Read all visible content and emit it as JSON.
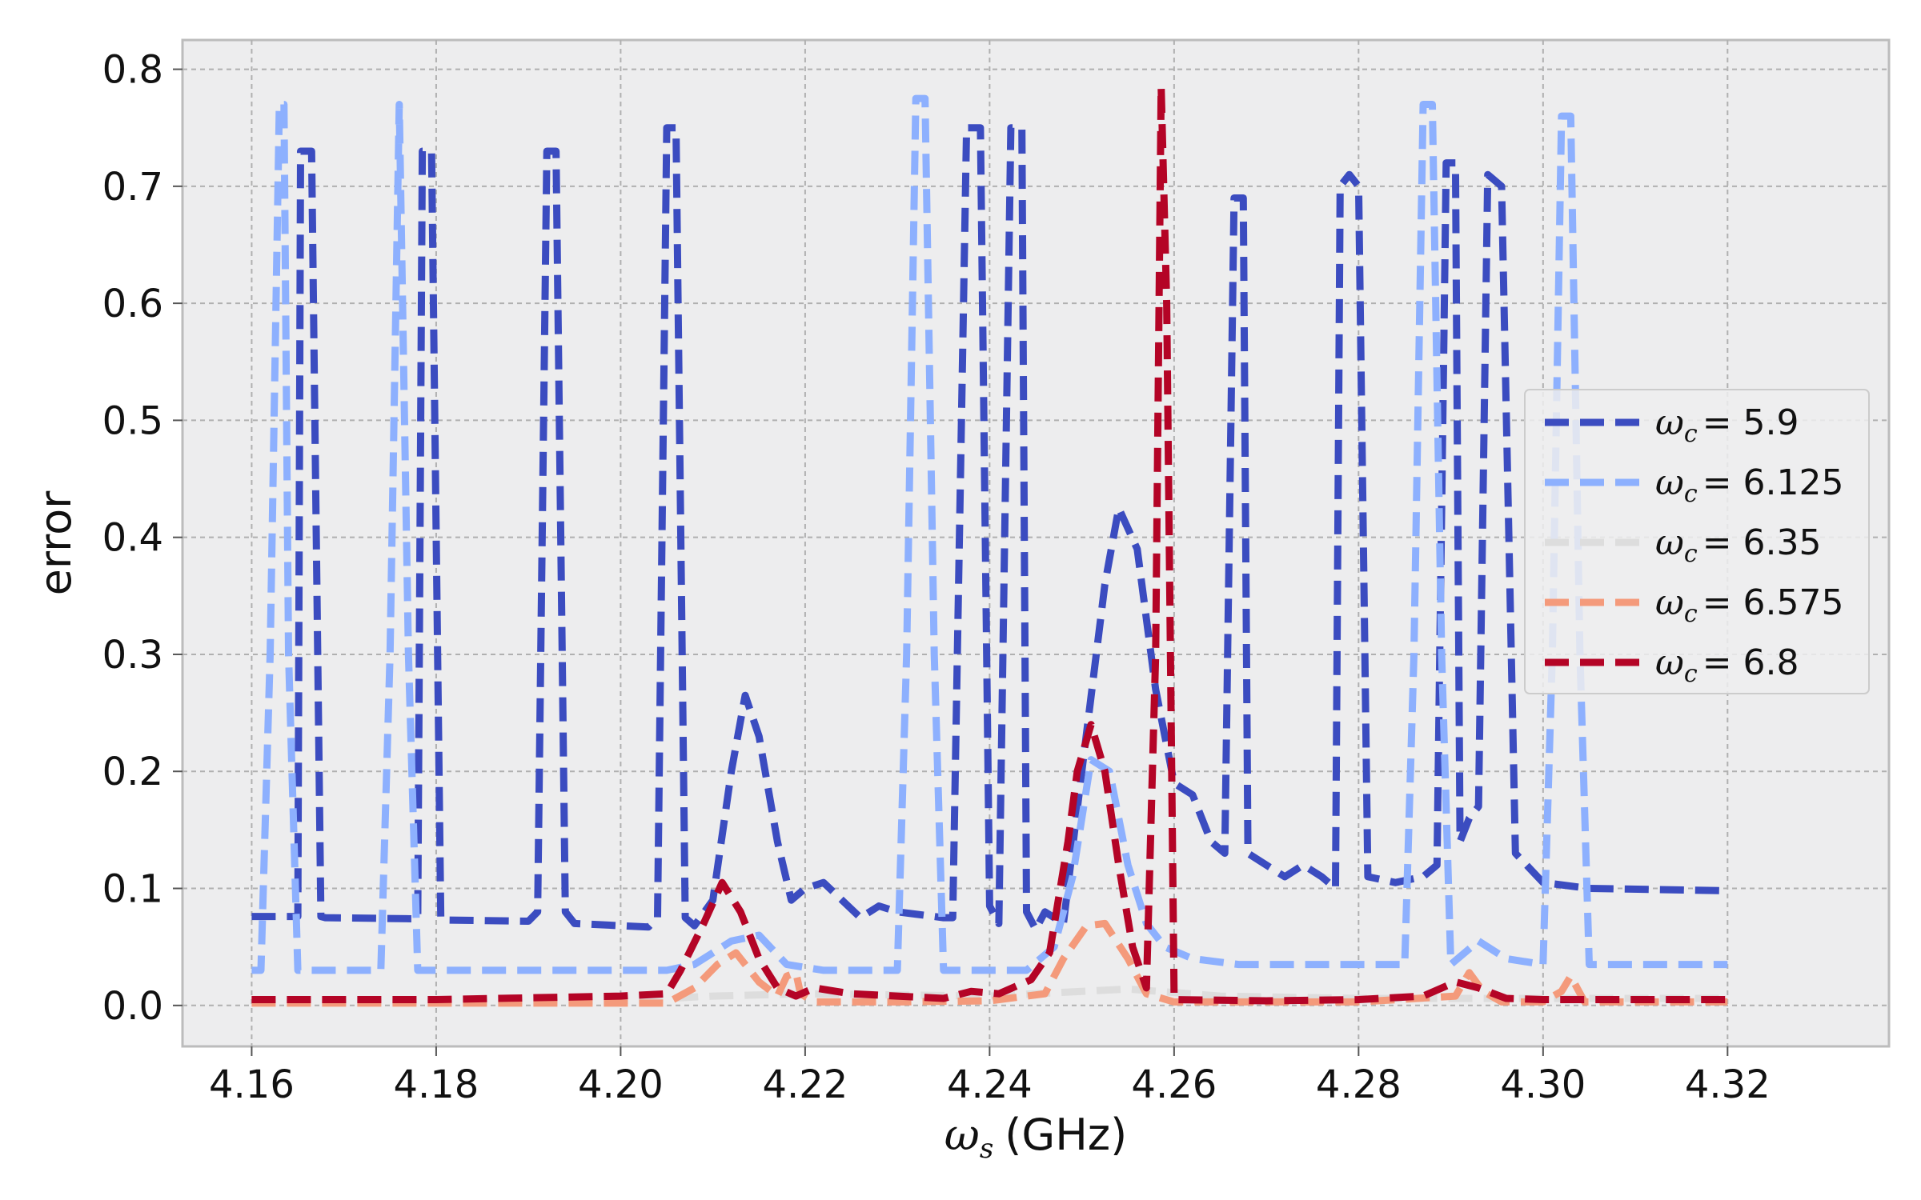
{
  "chart_data": {
    "type": "line",
    "xlabel": {
      "symbol": "ω",
      "subscript": "s",
      "unit": "(GHz)"
    },
    "ylabel": "error",
    "xlim": [
      4.1525,
      4.3375
    ],
    "ylim": [
      -0.035,
      0.825
    ],
    "xticks": [
      4.16,
      4.18,
      4.2,
      4.22,
      4.24,
      4.26,
      4.28,
      4.3,
      4.32
    ],
    "xtick_labels": [
      "4.16",
      "4.18",
      "4.20",
      "4.22",
      "4.24",
      "4.26",
      "4.28",
      "4.30",
      "4.32"
    ],
    "yticks": [
      0.0,
      0.1,
      0.2,
      0.3,
      0.4,
      0.5,
      0.6,
      0.7,
      0.8
    ],
    "ytick_labels": [
      "0.0",
      "0.1",
      "0.2",
      "0.3",
      "0.4",
      "0.5",
      "0.6",
      "0.7",
      "0.8"
    ],
    "grid": true,
    "legend_position": "center-right",
    "series": [
      {
        "name": "ω_c = 5.9",
        "legend_prefix": "ω",
        "legend_sub": "c",
        "legend_value": "= 5.9",
        "color": "#3b4cc0",
        "x": [
          4.16,
          4.165,
          4.1653,
          4.1665,
          4.1675,
          4.168,
          4.178,
          4.1785,
          4.1795,
          4.1805,
          4.181,
          4.19,
          4.191,
          4.192,
          4.193,
          4.194,
          4.195,
          4.203,
          4.204,
          4.205,
          4.206,
          4.207,
          4.208,
          4.21,
          4.212,
          4.2135,
          4.215,
          4.217,
          4.2185,
          4.22,
          4.222,
          4.224,
          4.226,
          4.228,
          4.23,
          4.235,
          4.236,
          4.2375,
          4.239,
          4.24,
          4.241,
          4.2423,
          4.2435,
          4.244,
          4.245,
          4.246,
          4.248,
          4.25,
          4.2525,
          4.254,
          4.256,
          4.258,
          4.26,
          4.262,
          4.264,
          4.2655,
          4.2665,
          4.2675,
          4.268,
          4.27,
          4.272,
          4.274,
          4.276,
          4.2775,
          4.278,
          4.279,
          4.28,
          4.281,
          4.284,
          4.287,
          4.2885,
          4.2895,
          4.2905,
          4.291,
          4.292,
          4.293,
          4.294,
          4.2955,
          4.297,
          4.3,
          4.305,
          4.32
        ],
        "y": [
          0.076,
          0.076,
          0.73,
          0.73,
          0.076,
          0.075,
          0.074,
          0.73,
          0.73,
          0.074,
          0.073,
          0.072,
          0.08,
          0.73,
          0.73,
          0.08,
          0.07,
          0.067,
          0.075,
          0.75,
          0.75,
          0.075,
          0.068,
          0.09,
          0.2,
          0.265,
          0.23,
          0.14,
          0.09,
          0.1,
          0.105,
          0.09,
          0.075,
          0.085,
          0.08,
          0.075,
          0.075,
          0.75,
          0.75,
          0.085,
          0.07,
          0.75,
          0.75,
          0.08,
          0.065,
          0.08,
          0.07,
          0.2,
          0.36,
          0.425,
          0.39,
          0.27,
          0.19,
          0.18,
          0.14,
          0.13,
          0.69,
          0.69,
          0.13,
          0.12,
          0.11,
          0.12,
          0.11,
          0.1,
          0.7,
          0.71,
          0.7,
          0.11,
          0.105,
          0.11,
          0.12,
          0.72,
          0.72,
          0.14,
          0.16,
          0.17,
          0.71,
          0.7,
          0.13,
          0.105,
          0.1,
          0.098
        ]
      },
      {
        "name": "ω_c = 6.125",
        "legend_prefix": "ω",
        "legend_sub": "c",
        "legend_value": "= 6.125",
        "color": "#8db0fe",
        "x": [
          4.16,
          4.161,
          4.162,
          4.163,
          4.1635,
          4.164,
          4.165,
          4.174,
          4.175,
          4.176,
          4.177,
          4.178,
          4.185,
          4.195,
          4.205,
          4.208,
          4.212,
          4.215,
          4.218,
          4.222,
          4.228,
          4.23,
          4.231,
          4.232,
          4.233,
          4.234,
          4.235,
          4.24,
          4.244,
          4.247,
          4.249,
          4.251,
          4.253,
          4.255,
          4.257,
          4.259,
          4.262,
          4.267,
          4.275,
          4.285,
          4.286,
          4.287,
          4.288,
          4.289,
          4.29,
          4.293,
          4.296,
          4.3,
          4.301,
          4.302,
          4.303,
          4.304,
          4.305,
          4.32
        ],
        "y": [
          0.03,
          0.03,
          0.3,
          0.77,
          0.77,
          0.3,
          0.03,
          0.03,
          0.3,
          0.77,
          0.3,
          0.03,
          0.03,
          0.03,
          0.03,
          0.035,
          0.055,
          0.06,
          0.035,
          0.03,
          0.03,
          0.03,
          0.3,
          0.775,
          0.775,
          0.3,
          0.03,
          0.03,
          0.03,
          0.05,
          0.11,
          0.21,
          0.2,
          0.12,
          0.07,
          0.05,
          0.04,
          0.035,
          0.035,
          0.035,
          0.3,
          0.77,
          0.77,
          0.3,
          0.035,
          0.055,
          0.04,
          0.035,
          0.3,
          0.76,
          0.76,
          0.3,
          0.035,
          0.035
        ]
      },
      {
        "name": "ω_c = 6.35",
        "legend_prefix": "ω",
        "legend_sub": "c",
        "legend_value": "= 6.35",
        "color": "#dddddd",
        "x": [
          4.16,
          4.2,
          4.21,
          4.22,
          4.24,
          4.25,
          4.255,
          4.265,
          4.28,
          4.3,
          4.32
        ],
        "y": [
          0.004,
          0.004,
          0.008,
          0.01,
          0.008,
          0.012,
          0.014,
          0.008,
          0.006,
          0.006,
          0.006
        ]
      },
      {
        "name": "ω_c = 6.575",
        "legend_prefix": "ω",
        "legend_sub": "c",
        "legend_value": "= 6.575",
        "color": "#f49a7b",
        "x": [
          4.16,
          4.205,
          4.208,
          4.2105,
          4.2125,
          4.215,
          4.217,
          4.218,
          4.219,
          4.2195,
          4.221,
          4.23,
          4.24,
          4.246,
          4.248,
          4.2505,
          4.2525,
          4.255,
          4.257,
          4.26,
          4.28,
          4.2905,
          4.292,
          4.2935,
          4.2955,
          4.3,
          4.302,
          4.303,
          4.3045,
          4.32
        ],
        "y": [
          0.002,
          0.002,
          0.015,
          0.035,
          0.045,
          0.02,
          0.008,
          0.025,
          0.028,
          0.01,
          0.003,
          0.003,
          0.004,
          0.01,
          0.04,
          0.068,
          0.07,
          0.04,
          0.01,
          0.003,
          0.003,
          0.008,
          0.028,
          0.012,
          0.003,
          0.003,
          0.012,
          0.025,
          0.003,
          0.003
        ]
      },
      {
        "name": "ω_c = 6.8",
        "legend_prefix": "ω",
        "legend_sub": "c",
        "legend_value": "= 6.8",
        "color": "#b40426",
        "x": [
          4.16,
          4.18,
          4.2,
          4.205,
          4.2065,
          4.209,
          4.211,
          4.213,
          4.215,
          4.217,
          4.219,
          4.221,
          4.225,
          4.23,
          4.235,
          4.238,
          4.241,
          4.2445,
          4.2465,
          4.2485,
          4.2495,
          4.251,
          4.2525,
          4.254,
          4.2555,
          4.257,
          4.258,
          4.2586,
          4.2592,
          4.26,
          4.27,
          4.28,
          4.287,
          4.2905,
          4.293,
          4.296,
          4.3,
          4.32
        ],
        "y": [
          0.005,
          0.005,
          0.008,
          0.01,
          0.03,
          0.07,
          0.105,
          0.08,
          0.04,
          0.015,
          0.008,
          0.015,
          0.01,
          0.008,
          0.006,
          0.012,
          0.01,
          0.022,
          0.045,
          0.14,
          0.2,
          0.24,
          0.2,
          0.12,
          0.05,
          0.015,
          0.3,
          0.785,
          0.6,
          0.005,
          0.004,
          0.005,
          0.008,
          0.02,
          0.015,
          0.006,
          0.005,
          0.005
        ]
      }
    ]
  }
}
